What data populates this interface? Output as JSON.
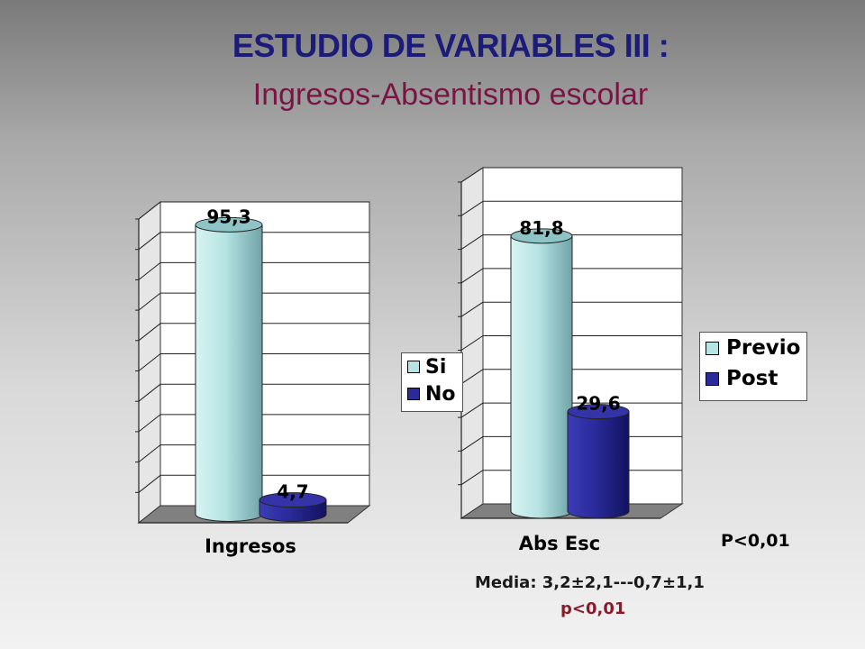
{
  "title": "ESTUDIO DE VARIABLES III :",
  "subtitle": "Ingresos-Absentismo escolar",
  "colors": {
    "previo": "#b6e3e3",
    "post": "#2a2a9a",
    "title": "#1b1b7a",
    "subtitle": "#7a1444",
    "pvalue2": "#8b1a2a"
  },
  "chart_data": [
    {
      "type": "bar",
      "categories": [
        "Ingresos"
      ],
      "series": [
        {
          "name": "Si",
          "values": [
            95.3
          ]
        },
        {
          "name": "No",
          "values": [
            4.7
          ]
        }
      ],
      "data_labels": [
        "95,3",
        "4,7"
      ],
      "xlabel": "Ingresos",
      "ylim": [
        0,
        100
      ],
      "grid": true,
      "legend": "right"
    },
    {
      "type": "bar",
      "categories": [
        "Abs Esc"
      ],
      "series": [
        {
          "name": "Previo",
          "values": [
            81.8
          ]
        },
        {
          "name": "Post",
          "values": [
            29.6
          ]
        }
      ],
      "data_labels": [
        "81,8",
        "29,6"
      ],
      "xlabel": "Abs Esc",
      "ylim": [
        0,
        100
      ],
      "grid": true,
      "legend": "right"
    }
  ],
  "annotations": {
    "p_value": "P<0,01",
    "media": "Media: 3,2±2,1---0,7±1,1",
    "p_value2": "p<0,01"
  }
}
